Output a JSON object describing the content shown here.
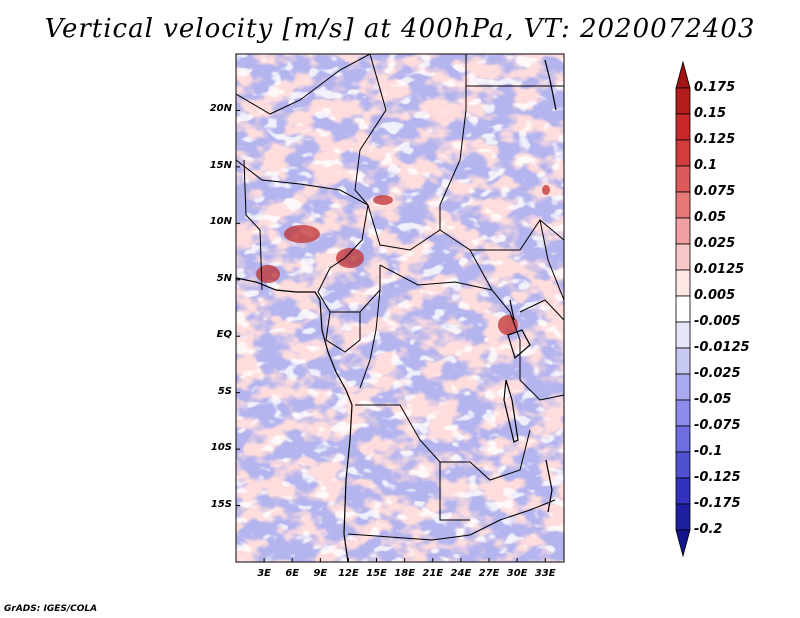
{
  "title": "Vertical velocity [m/s] at 400hPa, VT: 2020072403",
  "credit": "GrADS: IGES/COLA",
  "map": {
    "lat_range": [
      -20,
      25
    ],
    "lon_range": [
      0,
      35
    ],
    "lat_ticks": [
      "20N",
      "15N",
      "10N",
      "5N",
      "EQ",
      "5S",
      "10S",
      "15S"
    ],
    "lat_tick_values": [
      20,
      15,
      10,
      5,
      0,
      -5,
      -10,
      -15
    ],
    "lon_ticks": [
      "3E",
      "6E",
      "9E",
      "12E",
      "15E",
      "18E",
      "21E",
      "24E",
      "27E",
      "30E",
      "33E"
    ],
    "lon_tick_values": [
      3,
      6,
      9,
      12,
      15,
      18,
      21,
      24,
      27,
      30,
      33
    ]
  },
  "colorbar": {
    "labels": [
      "0.175",
      "0.15",
      "0.125",
      "0.1",
      "0.075",
      "0.05",
      "0.025",
      "0.0125",
      "0.005",
      "-0.005",
      "-0.0125",
      "-0.025",
      "-0.05",
      "-0.075",
      "-0.1",
      "-0.125",
      "-0.175",
      "-0.2"
    ],
    "colors": [
      "#a01414",
      "#b41c1c",
      "#c82828",
      "#d23c3c",
      "#dc5a5a",
      "#e67878",
      "#f0a0a0",
      "#f8c8c8",
      "#fde6e6",
      "#ffffff",
      "#e6e6fa",
      "#c8c8f5",
      "#aaaaf0",
      "#8c8ceb",
      "#6e6ee1",
      "#5050d2",
      "#3232be",
      "#1e1ea0",
      "#14148c"
    ]
  }
}
